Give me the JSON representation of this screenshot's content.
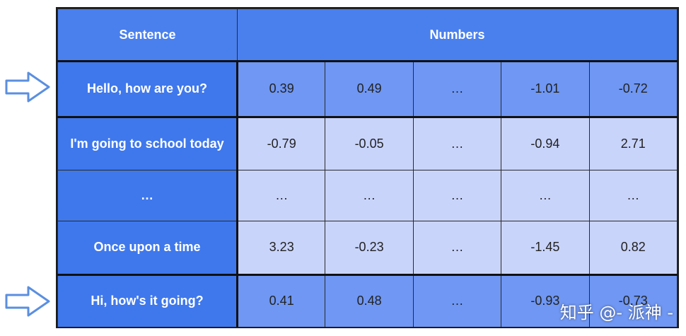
{
  "headers": {
    "sentence": "Sentence",
    "numbers": "Numbers"
  },
  "rows": [
    {
      "sentence": "Hello, how are you?",
      "values": [
        "0.39",
        "0.49",
        "…",
        "-1.01",
        "-0.72"
      ],
      "highlighted": true
    },
    {
      "sentence": "I'm going to school today",
      "values": [
        "-0.79",
        "-0.05",
        "…",
        "-0.94",
        "2.71"
      ],
      "highlighted": false
    },
    {
      "sentence": "…",
      "values": [
        "…",
        "…",
        "…",
        "…",
        "…"
      ],
      "highlighted": false
    },
    {
      "sentence": "Once upon a time",
      "values": [
        "3.23",
        "-0.23",
        "…",
        "-1.45",
        "0.82"
      ],
      "highlighted": false
    },
    {
      "sentence": "Hi, how's it going?",
      "values": [
        "0.41",
        "0.48",
        "…",
        "-0.93",
        "-0.73"
      ],
      "highlighted": true
    }
  ],
  "watermark": "知乎 @- 派神 -",
  "colors": {
    "header_blue": "#4a80ee",
    "sentence_blue": "#3f78ec",
    "highlight_cell": "#6f97f3",
    "normal_cell": "#c9d4fb",
    "arrow_stroke": "#5a8fe0"
  },
  "icons": {
    "pointer": "hollow-right-arrow-icon"
  }
}
